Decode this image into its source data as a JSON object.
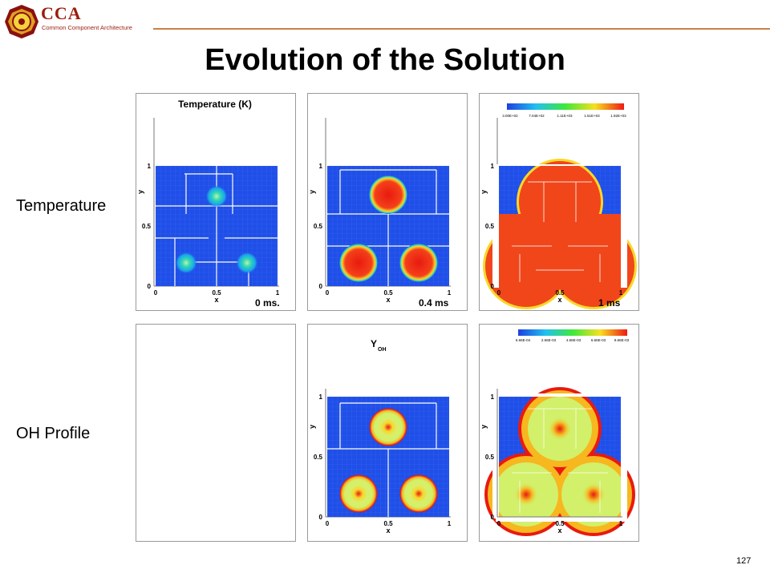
{
  "header": {
    "logo_text": "CCA",
    "logo_subtext": "Common Component Architecture"
  },
  "slide": {
    "title": "Evolution of the Solution",
    "page_number": "127"
  },
  "rows": [
    {
      "label": "Temperature"
    },
    {
      "label": "OH Profile"
    }
  ],
  "plots": {
    "temperature": {
      "panels": [
        {
          "title": "Temperature (K)",
          "time": "0 ms.",
          "xlabel": "x",
          "ylabel": "y",
          "xticks": [
            "0",
            "0.5",
            "1"
          ],
          "yticks": [
            "0",
            "0.5",
            "1"
          ]
        },
        {
          "time": "0.4 ms",
          "xlabel": "x",
          "ylabel": "y",
          "xticks": [
            "0",
            "0.5",
            "1"
          ],
          "yticks": [
            "0",
            "0.5",
            "1"
          ]
        },
        {
          "time": "1 ms",
          "xlabel": "x",
          "ylabel": "y",
          "xticks": [
            "0",
            "0.5",
            "1"
          ],
          "yticks": [
            "0",
            "0.5",
            "1"
          ],
          "legend_ticks": [
            "3.00E+02",
            "7.04E+02",
            "1.11E+03",
            "1.51E+03",
            "1.92E+03"
          ]
        }
      ]
    },
    "oh": {
      "panels": [
        {},
        {
          "title": "Y",
          "title_sub": "OH",
          "xlabel": "x",
          "ylabel": "y",
          "xticks": [
            "0",
            "0.5",
            "1"
          ],
          "yticks": [
            "0",
            "0.5",
            "1"
          ]
        },
        {
          "xlabel": "x",
          "ylabel": "y",
          "xticks": [
            "0",
            "0.5",
            "1"
          ],
          "yticks": [
            "0",
            "0.5",
            "1"
          ],
          "legend_ticks": [
            "6.66E-04",
            "2.66E-03",
            "4.66E-03",
            "6.66E-03",
            "8.66E-03"
          ]
        }
      ]
    }
  },
  "colors": {
    "accent_brown": "#c88246",
    "logo_red": "#9b1c0c",
    "field_low": "#1f4fe8",
    "field_high": "#ef2a14"
  }
}
